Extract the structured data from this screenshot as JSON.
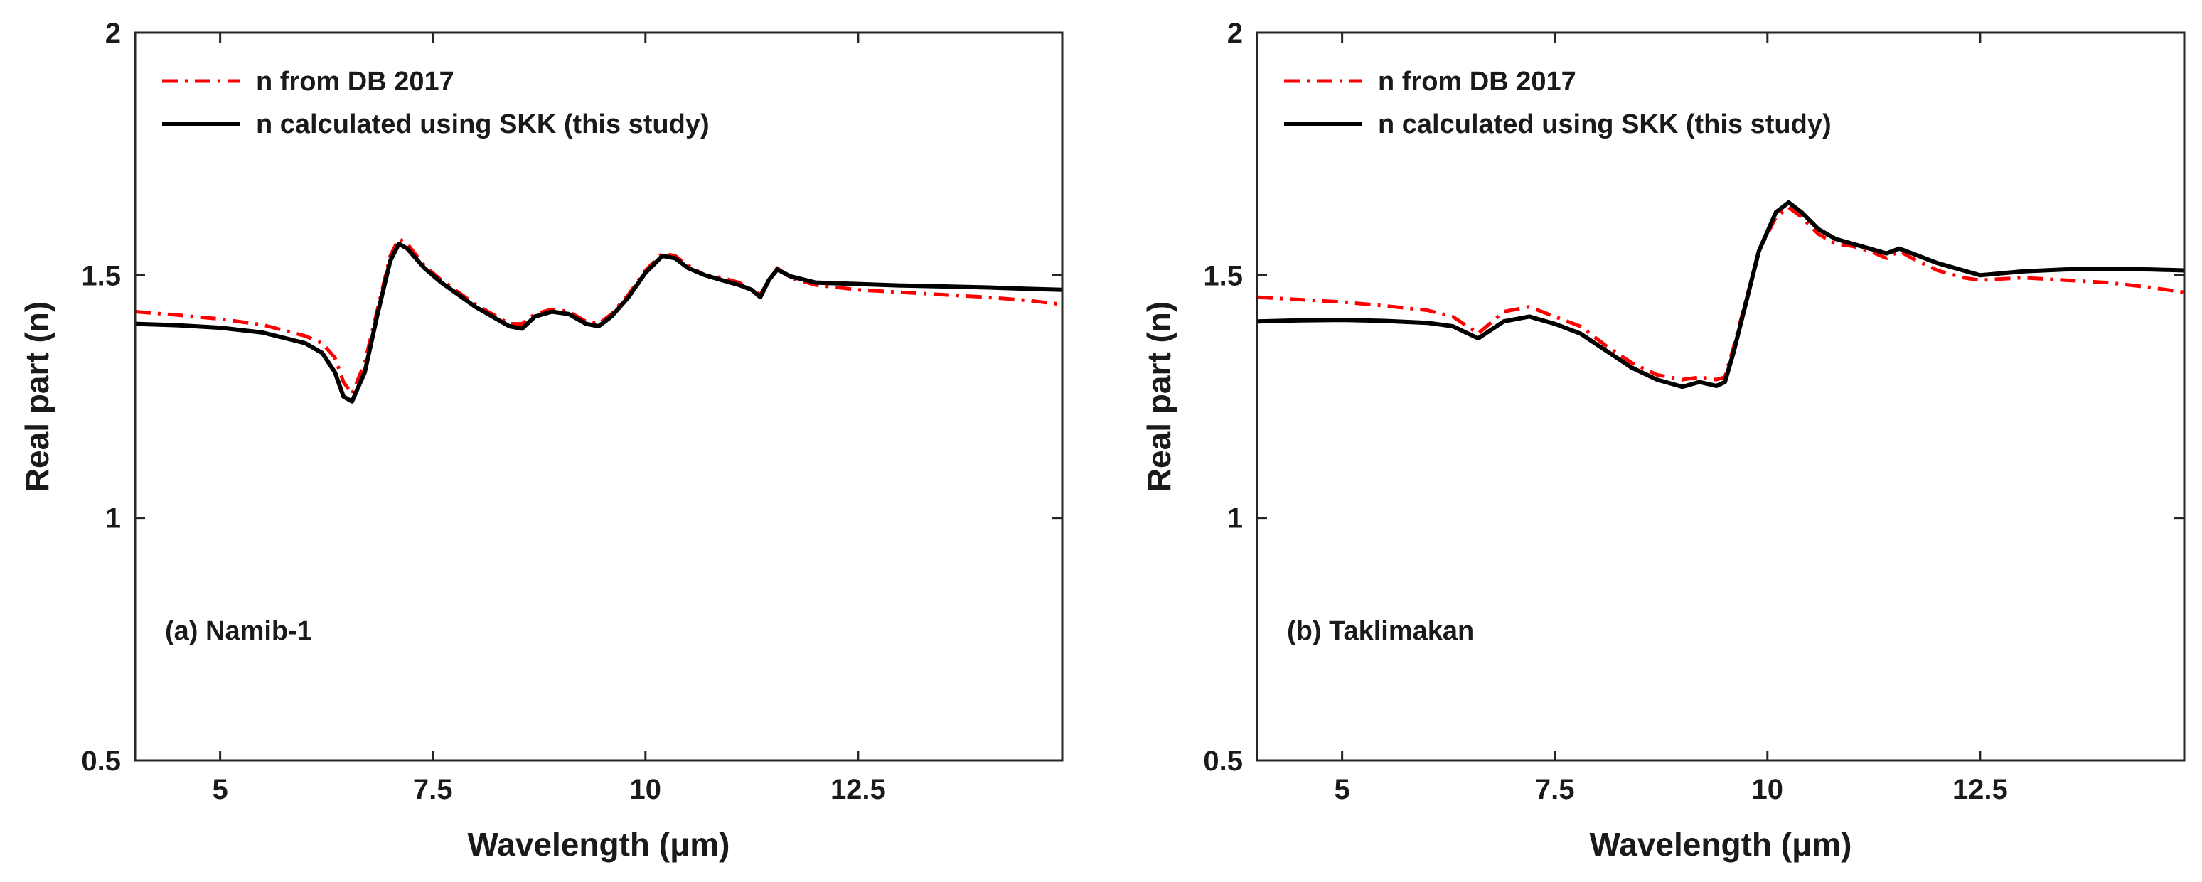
{
  "chart_data": [
    {
      "type": "line",
      "annotation": "(a) Namib-1",
      "xlabel": "Wavelength (μm)",
      "ylabel": "Real part (n)",
      "xlim": [
        4,
        14.9
      ],
      "ylim": [
        0.5,
        2
      ],
      "xticks": [
        5,
        7.5,
        10,
        12.5
      ],
      "xtick_labels": [
        "5",
        "7.5",
        "10",
        "12.5"
      ],
      "yticks": [
        0.5,
        1,
        1.5,
        2
      ],
      "ytick_labels": [
        "0.5",
        "1",
        "1.5",
        "2"
      ],
      "legend": {
        "placement": "top-left"
      },
      "series": [
        {
          "name": "n from DB 2017",
          "color": "#ff0000",
          "style": "dash-dot",
          "x": [
            4.0,
            4.5,
            5.0,
            5.5,
            6.0,
            6.2,
            6.35,
            6.45,
            6.55,
            6.7,
            6.85,
            7.0,
            7.1,
            7.2,
            7.4,
            7.6,
            7.8,
            8.0,
            8.2,
            8.4,
            8.55,
            8.7,
            8.9,
            9.1,
            9.3,
            9.45,
            9.6,
            9.8,
            10.0,
            10.2,
            10.35,
            10.5,
            10.7,
            10.9,
            11.1,
            11.25,
            11.35,
            11.45,
            11.55,
            11.7,
            12.0,
            12.5,
            13.0,
            13.5,
            14.0,
            14.5,
            14.9
          ],
          "y": [
            1.425,
            1.418,
            1.41,
            1.398,
            1.375,
            1.36,
            1.33,
            1.28,
            1.255,
            1.32,
            1.43,
            1.54,
            1.575,
            1.565,
            1.52,
            1.49,
            1.465,
            1.44,
            1.42,
            1.4,
            1.4,
            1.42,
            1.43,
            1.425,
            1.405,
            1.4,
            1.42,
            1.46,
            1.51,
            1.545,
            1.54,
            1.52,
            1.5,
            1.495,
            1.485,
            1.47,
            1.46,
            1.49,
            1.515,
            1.495,
            1.48,
            1.47,
            1.465,
            1.46,
            1.455,
            1.448,
            1.44
          ]
        },
        {
          "name": "n calculated using SKK (this study)",
          "color": "#000000",
          "style": "solid",
          "x": [
            4.0,
            4.5,
            5.0,
            5.5,
            6.0,
            6.2,
            6.35,
            6.45,
            6.55,
            6.7,
            6.85,
            7.0,
            7.1,
            7.2,
            7.4,
            7.6,
            7.8,
            8.0,
            8.2,
            8.4,
            8.55,
            8.7,
            8.9,
            9.1,
            9.3,
            9.45,
            9.6,
            9.8,
            10.0,
            10.2,
            10.35,
            10.5,
            10.7,
            10.9,
            11.1,
            11.25,
            11.35,
            11.45,
            11.55,
            11.7,
            12.0,
            12.5,
            13.0,
            13.5,
            14.0,
            14.5,
            14.9
          ],
          "y": [
            1.4,
            1.397,
            1.392,
            1.382,
            1.36,
            1.34,
            1.3,
            1.25,
            1.24,
            1.3,
            1.42,
            1.53,
            1.565,
            1.555,
            1.515,
            1.485,
            1.46,
            1.435,
            1.415,
            1.395,
            1.39,
            1.415,
            1.425,
            1.42,
            1.4,
            1.395,
            1.415,
            1.455,
            1.505,
            1.54,
            1.535,
            1.515,
            1.5,
            1.49,
            1.48,
            1.47,
            1.455,
            1.49,
            1.512,
            1.498,
            1.485,
            1.482,
            1.479,
            1.477,
            1.475,
            1.472,
            1.47
          ]
        }
      ]
    },
    {
      "type": "line",
      "annotation": "(b) Taklimakan",
      "xlabel": "Wavelength (μm)",
      "ylabel": "Real part (n)",
      "xlim": [
        4,
        14.9
      ],
      "ylim": [
        0.5,
        2
      ],
      "xticks": [
        5,
        7.5,
        10,
        12.5
      ],
      "xtick_labels": [
        "5",
        "7.5",
        "10",
        "12.5"
      ],
      "yticks": [
        0.5,
        1,
        1.5,
        2
      ],
      "ytick_labels": [
        "0.5",
        "1",
        "1.5",
        "2"
      ],
      "legend": {
        "placement": "top-left"
      },
      "series": [
        {
          "name": "n from DB 2017",
          "color": "#ff0000",
          "style": "dash-dot",
          "x": [
            4.0,
            4.5,
            5.0,
            5.5,
            6.0,
            6.3,
            6.6,
            6.9,
            7.2,
            7.5,
            7.8,
            8.1,
            8.4,
            8.7,
            9.0,
            9.2,
            9.4,
            9.5,
            9.6,
            9.75,
            9.9,
            10.1,
            10.25,
            10.4,
            10.6,
            10.8,
            11.0,
            11.2,
            11.4,
            11.55,
            11.7,
            12.0,
            12.3,
            12.5,
            13.0,
            13.5,
            14.0,
            14.5,
            14.9
          ],
          "y": [
            1.455,
            1.45,
            1.445,
            1.437,
            1.428,
            1.415,
            1.38,
            1.425,
            1.435,
            1.415,
            1.395,
            1.355,
            1.32,
            1.295,
            1.285,
            1.29,
            1.285,
            1.29,
            1.35,
            1.45,
            1.55,
            1.62,
            1.64,
            1.62,
            1.585,
            1.565,
            1.56,
            1.55,
            1.535,
            1.55,
            1.535,
            1.51,
            1.495,
            1.49,
            1.495,
            1.49,
            1.485,
            1.475,
            1.465
          ]
        },
        {
          "name": "n calculated using SKK (this study)",
          "color": "#000000",
          "style": "solid",
          "x": [
            4.0,
            4.5,
            5.0,
            5.5,
            6.0,
            6.3,
            6.6,
            6.9,
            7.2,
            7.5,
            7.8,
            8.1,
            8.4,
            8.7,
            9.0,
            9.2,
            9.4,
            9.5,
            9.6,
            9.75,
            9.9,
            10.1,
            10.25,
            10.4,
            10.6,
            10.8,
            11.0,
            11.2,
            11.4,
            11.55,
            11.7,
            12.0,
            12.3,
            12.5,
            13.0,
            13.5,
            14.0,
            14.5,
            14.9
          ],
          "y": [
            1.405,
            1.407,
            1.408,
            1.406,
            1.402,
            1.395,
            1.37,
            1.405,
            1.415,
            1.4,
            1.38,
            1.345,
            1.31,
            1.285,
            1.27,
            1.28,
            1.272,
            1.28,
            1.34,
            1.445,
            1.55,
            1.63,
            1.65,
            1.63,
            1.595,
            1.575,
            1.565,
            1.555,
            1.545,
            1.555,
            1.545,
            1.525,
            1.51,
            1.5,
            1.508,
            1.512,
            1.513,
            1.512,
            1.51
          ]
        }
      ]
    }
  ]
}
